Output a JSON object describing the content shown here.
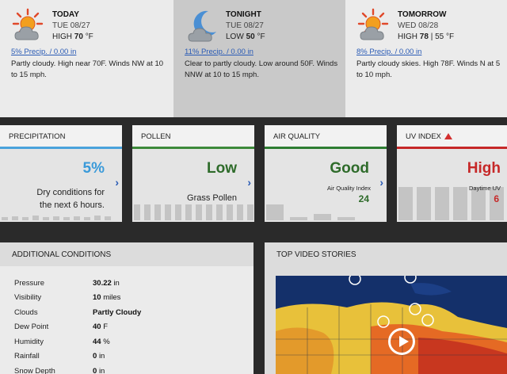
{
  "forecast": [
    {
      "key": "today",
      "title": "TODAY",
      "date": "TUE 08/27",
      "temp_label": "HIGH",
      "temp": "70",
      "temp_unit": "°F",
      "extra": "",
      "precip": "5% Precip. / 0.00 in",
      "summary": "Partly cloudy. High near 70F. Winds NW at 10 to 15 mph.",
      "icon": "partly-sunny-icon"
    },
    {
      "key": "tonight",
      "title": "TONIGHT",
      "date": "TUE 08/27",
      "temp_label": "LOW",
      "temp": "50",
      "temp_unit": "°F",
      "extra": "",
      "precip": "11% Precip. / 0.00 in",
      "summary": "Clear to partly cloudy. Low around 50F. Winds NNW at 10 to 15 mph.",
      "icon": "moon-cloud-icon"
    },
    {
      "key": "tomorrow",
      "title": "TOMORROW",
      "date": "WED 08/28",
      "temp_label": "HIGH",
      "temp": "78",
      "temp_unit": "",
      "extra": "| 55 °F",
      "precip": "8% Precip. / 0.00 in",
      "summary": "Partly cloudy skies. High 78F. Winds N at 5 to 10 mph.",
      "icon": "partly-sunny-icon"
    }
  ],
  "metrics": {
    "precipitation": {
      "title": "PRECIPITATION",
      "value": "5%",
      "desc_line1": "Dry conditions for",
      "desc_line2": "the next 6 hours.",
      "color": "#3a9ad9"
    },
    "pollen": {
      "title": "POLLEN",
      "value": "Low",
      "desc": "Grass Pollen",
      "color": "#2e6b2a"
    },
    "air_quality": {
      "title": "AIR QUALITY",
      "value": "Good",
      "index_label": "Air Quality Index",
      "index_value": "24",
      "color": "#2e6b2a"
    },
    "uv_index": {
      "title": "UV INDEX",
      "value": "High",
      "index_label": "Daytime UV",
      "index_value": "6",
      "color": "#c62828"
    }
  },
  "additional": {
    "title": "ADDITIONAL CONDITIONS",
    "rows": [
      {
        "label": "Pressure",
        "value": "30.22",
        "unit": "in"
      },
      {
        "label": "Visibility",
        "value": "10",
        "unit": "miles"
      },
      {
        "label": "Clouds",
        "value": "Partly Cloudy",
        "unit": ""
      },
      {
        "label": "Dew Point",
        "value": "40",
        "unit": "F"
      },
      {
        "label": "Humidity",
        "value": "44",
        "unit": "%"
      },
      {
        "label": "Rainfall",
        "value": "0",
        "unit": "in"
      },
      {
        "label": "Snow Depth",
        "value": "0",
        "unit": "in"
      }
    ]
  },
  "video": {
    "title": "TOP VIDEO STORIES"
  }
}
